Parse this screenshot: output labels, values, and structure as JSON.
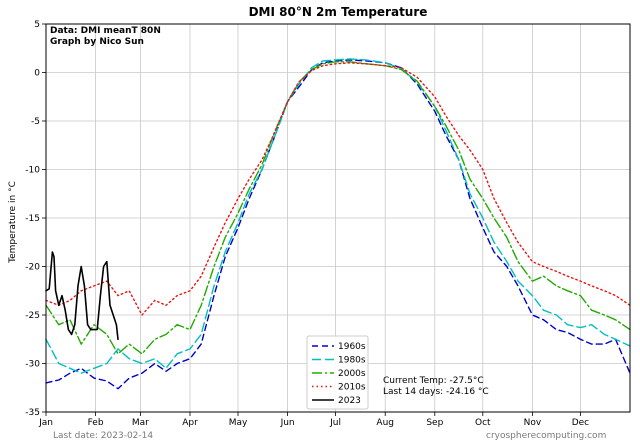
{
  "chart_data": {
    "type": "line",
    "title": "DMI 80°N 2m Temperature",
    "xlabel": "",
    "ylabel": "Temperature in °C",
    "xlim": [
      0,
      365
    ],
    "ylim": [
      -35,
      5
    ],
    "yticks": [
      5,
      0,
      -5,
      -10,
      -15,
      -20,
      -25,
      -30,
      -35
    ],
    "month_ticks": [
      {
        "label": "Jan",
        "day": 0
      },
      {
        "label": "Feb",
        "day": 31
      },
      {
        "label": "Mar",
        "day": 59
      },
      {
        "label": "Apr",
        "day": 90
      },
      {
        "label": "May",
        "day": 120
      },
      {
        "label": "Jun",
        "day": 151
      },
      {
        "label": "Jul",
        "day": 181
      },
      {
        "label": "Aug",
        "day": 212
      },
      {
        "label": "Sep",
        "day": 243
      },
      {
        "label": "Oct",
        "day": 273
      },
      {
        "label": "Nov",
        "day": 304
      },
      {
        "label": "Dec",
        "day": 334
      }
    ],
    "grid": true,
    "legend_position": "bottom-center",
    "annotation": {
      "line1": "Data: DMI meanT 80N",
      "line2": "Graph by Nico Sun"
    },
    "current": {
      "temp": "Current Temp: -27.5°C",
      "last14": "Last 14 days: -24.16 °C"
    },
    "series": [
      {
        "name": "1960s",
        "color": "#0000cc",
        "dash": "6,4",
        "x": [
          0,
          8,
          15,
          22,
          30,
          38,
          45,
          52,
          60,
          68,
          75,
          82,
          90,
          97,
          105,
          112,
          120,
          127,
          135,
          142,
          151,
          158,
          166,
          173,
          181,
          190,
          200,
          212,
          222,
          232,
          243,
          250,
          258,
          265,
          273,
          280,
          288,
          295,
          304,
          311,
          319,
          326,
          334,
          341,
          349,
          356,
          365
        ],
        "y": [
          -32,
          -31.7,
          -31,
          -30.5,
          -31.5,
          -31.8,
          -32.6,
          -31.5,
          -31,
          -30,
          -30.8,
          -30,
          -29.5,
          -28,
          -23,
          -19,
          -16,
          -13,
          -10,
          -7,
          -3,
          -1.5,
          0.3,
          1,
          1.2,
          1.3,
          1.2,
          1,
          0.5,
          -1.2,
          -4,
          -6.5,
          -9,
          -13,
          -16,
          -18.5,
          -20,
          -22,
          -25,
          -25.5,
          -26.5,
          -26.8,
          -27.5,
          -28,
          -28,
          -27.5,
          -31
        ]
      },
      {
        "name": "1980s",
        "color": "#00bfbf",
        "dash": "9,4",
        "x": [
          0,
          8,
          15,
          22,
          30,
          38,
          45,
          52,
          60,
          68,
          75,
          82,
          90,
          97,
          105,
          112,
          120,
          127,
          135,
          142,
          151,
          158,
          166,
          173,
          181,
          190,
          200,
          212,
          222,
          232,
          243,
          250,
          258,
          265,
          273,
          280,
          288,
          295,
          304,
          311,
          319,
          326,
          334,
          341,
          349,
          356,
          365
        ],
        "y": [
          -27.5,
          -30,
          -30.5,
          -31,
          -30.5,
          -30,
          -28.5,
          -29.5,
          -30,
          -29.5,
          -30.5,
          -29,
          -28.5,
          -27,
          -22,
          -18.5,
          -15.5,
          -12.5,
          -10,
          -7,
          -3,
          -1.2,
          0.5,
          1.2,
          1.3,
          1.4,
          1.3,
          1,
          0.4,
          -1,
          -3.5,
          -6,
          -9,
          -12.5,
          -15,
          -17.5,
          -19.5,
          -21.5,
          -23,
          -24.5,
          -25,
          -26,
          -26.3,
          -26,
          -27,
          -27.5,
          -28.2
        ]
      },
      {
        "name": "2000s",
        "color": "#22aa00",
        "dash": "10,3,2,3",
        "x": [
          0,
          8,
          15,
          22,
          30,
          38,
          45,
          52,
          60,
          68,
          75,
          82,
          90,
          97,
          105,
          112,
          120,
          127,
          135,
          142,
          151,
          158,
          166,
          173,
          181,
          190,
          200,
          212,
          222,
          232,
          243,
          250,
          258,
          265,
          273,
          280,
          288,
          295,
          304,
          311,
          319,
          326,
          334,
          341,
          349,
          356,
          365
        ],
        "y": [
          -24,
          -26,
          -25.5,
          -28,
          -26,
          -27,
          -29,
          -28,
          -29,
          -27.5,
          -27,
          -26,
          -26.5,
          -24,
          -20,
          -17,
          -14.5,
          -12,
          -9.5,
          -6.5,
          -3,
          -1,
          0.3,
          0.9,
          1.1,
          1.1,
          0.9,
          0.7,
          0.3,
          -0.9,
          -3.5,
          -5.5,
          -8,
          -11,
          -13,
          -15,
          -17,
          -19.5,
          -21.5,
          -21,
          -22,
          -22.5,
          -23,
          -24.5,
          -25,
          -25.5,
          -26.5
        ]
      },
      {
        "name": "2010s",
        "color": "#ee1111",
        "dash": "1.5,3",
        "x": [
          0,
          8,
          15,
          22,
          30,
          38,
          45,
          52,
          60,
          68,
          75,
          82,
          90,
          97,
          105,
          112,
          120,
          127,
          135,
          142,
          151,
          158,
          166,
          173,
          181,
          190,
          200,
          212,
          222,
          232,
          243,
          250,
          258,
          265,
          273,
          280,
          288,
          295,
          304,
          311,
          319,
          326,
          334,
          341,
          349,
          356,
          365
        ],
        "y": [
          -23.5,
          -24,
          -23.5,
          -22.5,
          -22,
          -21.5,
          -23,
          -22.5,
          -25,
          -23.5,
          -24,
          -23,
          -22.5,
          -21,
          -18,
          -15.5,
          -13,
          -11,
          -9,
          -6.5,
          -3,
          -1,
          0.2,
          0.7,
          0.9,
          1,
          0.9,
          0.7,
          0.5,
          -0.5,
          -2.5,
          -4.5,
          -6.5,
          -8,
          -10,
          -13,
          -15.5,
          -17.5,
          -19.5,
          -20,
          -20.5,
          -21,
          -21.5,
          -22,
          -22.5,
          -23,
          -24
        ]
      },
      {
        "name": "2023",
        "color": "#000000",
        "dash": "",
        "x": [
          0,
          2,
          4,
          5,
          6,
          8,
          10,
          12,
          14,
          16,
          18,
          20,
          22,
          24,
          26,
          28,
          30,
          32,
          34,
          36,
          38,
          40,
          42,
          44,
          45
        ],
        "y": [
          -22.5,
          -22.3,
          -18.5,
          -19,
          -22.5,
          -24,
          -23,
          -24.5,
          -26.5,
          -27,
          -26,
          -22,
          -20,
          -22,
          -26,
          -26.5,
          -26.5,
          -26.5,
          -23,
          -20,
          -19.5,
          -24,
          -25,
          -26,
          -27.5
        ]
      }
    ]
  },
  "footer": {
    "last_date": "Last date: 2023-02-14",
    "source": "cryospherecomputing.com"
  }
}
